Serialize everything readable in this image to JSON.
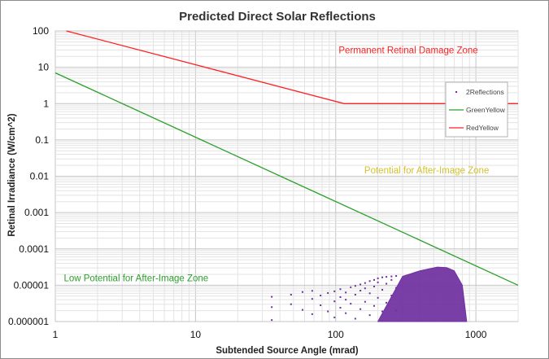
{
  "chart_data": {
    "type": "scatter",
    "title": "Predicted Direct Solar Reflections",
    "xlabel": "Subtended Source Angle (mrad)",
    "ylabel": "Retinal Irradiance (W/cm^2)",
    "x_scale": "log",
    "y_scale": "log",
    "xlim": [
      1,
      2000
    ],
    "ylim": [
      1e-06,
      100
    ],
    "x_ticks": [
      "1",
      "10",
      "100",
      "1000"
    ],
    "y_ticks": [
      "100",
      "10",
      "1",
      "0.1",
      "0.01",
      "0.001",
      "0.0001",
      "0.00001",
      "0.000001"
    ],
    "grid": true,
    "legend_position": "right",
    "series": [
      {
        "name": "2Reflections",
        "kind": "scatter",
        "color": "#7030a0",
        "envelope_upper": [
          [
            300,
            1.75e-05
          ],
          [
            400,
            2.5e-05
          ],
          [
            530,
            3.15e-05
          ],
          [
            620,
            3.05e-05
          ],
          [
            700,
            2.5e-05
          ],
          [
            800,
            1e-05
          ],
          [
            860,
            1e-06
          ]
        ],
        "envelope_lower": [
          [
            200,
            1e-06
          ],
          [
            860,
            1e-06
          ]
        ],
        "sparse_points": [
          [
            35,
            1.1e-06
          ],
          [
            35,
            2.5e-06
          ],
          [
            35,
            4.8e-06
          ],
          [
            48,
            3e-06
          ],
          [
            48,
            5.5e-06
          ],
          [
            58,
            2.1e-06
          ],
          [
            58,
            6.5e-06
          ],
          [
            68,
            1.6e-06
          ],
          [
            68,
            4.2e-06
          ],
          [
            68,
            7e-06
          ],
          [
            78,
            2.8e-06
          ],
          [
            78,
            5.2e-06
          ],
          [
            88,
            1.9e-06
          ],
          [
            88,
            6.1e-06
          ],
          [
            98,
            1.3e-06
          ],
          [
            98,
            3.6e-06
          ],
          [
            98,
            6.8e-06
          ],
          [
            108,
            2.4e-06
          ],
          [
            108,
            4.7e-06
          ],
          [
            108,
            7.8e-06
          ],
          [
            118,
            1.7e-06
          ],
          [
            118,
            4e-06
          ],
          [
            118,
            6.3e-06
          ],
          [
            128,
            3.1e-06
          ],
          [
            128,
            8.8e-06
          ],
          [
            138,
            1.2e-06
          ],
          [
            138,
            5.5e-06
          ],
          [
            138,
            9.6e-06
          ],
          [
            150,
            2.2e-06
          ],
          [
            150,
            7.1e-06
          ],
          [
            150,
            1.05e-05
          ],
          [
            162,
            3.5e-06
          ],
          [
            162,
            8.2e-06
          ],
          [
            162,
            1.15e-05
          ],
          [
            175,
            1.5e-06
          ],
          [
            175,
            6e-06
          ],
          [
            175,
            1.3e-05
          ],
          [
            188,
            2.7e-06
          ],
          [
            188,
            9.2e-06
          ],
          [
            188,
            1.4e-05
          ],
          [
            200,
            4.5e-06
          ],
          [
            200,
            1.2e-05
          ],
          [
            200,
            1.55e-05
          ],
          [
            215,
            1.9e-06
          ],
          [
            215,
            7.5e-06
          ],
          [
            215,
            1.65e-05
          ],
          [
            230,
            3.3e-06
          ],
          [
            230,
            1.1e-05
          ],
          [
            230,
            1.7e-05
          ],
          [
            250,
            5.2e-06
          ],
          [
            250,
            1.4e-05
          ],
          [
            250,
            1.75e-05
          ],
          [
            270,
            2e-06
          ],
          [
            270,
            8.5e-06
          ],
          [
            270,
            1.8e-05
          ]
        ]
      },
      {
        "name": "GreenYellow",
        "kind": "line",
        "color": "#2ca02c",
        "points": [
          [
            1,
            7
          ],
          [
            2000,
            1e-05
          ]
        ]
      },
      {
        "name": "RedYellow",
        "kind": "line",
        "color": "#ff2020",
        "points": [
          [
            1.2,
            100
          ],
          [
            115,
            1
          ],
          [
            2000,
            1
          ]
        ]
      }
    ],
    "annotations": [
      {
        "text": "Permanent  Retinal Damage Zone",
        "x": 105,
        "y": 24,
        "color": "#ff2020"
      },
      {
        "text": "Potential for After-Image Zone",
        "x": 160,
        "y": 0.012,
        "color": "#d4c12a"
      },
      {
        "text": "Low Potential for After-Image Zone",
        "x": 1.15,
        "y": 1.3e-05,
        "color": "#2ca02c"
      }
    ]
  }
}
